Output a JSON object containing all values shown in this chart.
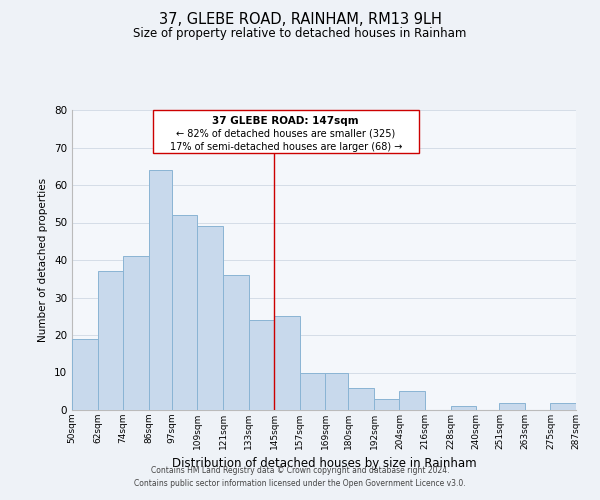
{
  "title": "37, GLEBE ROAD, RAINHAM, RM13 9LH",
  "subtitle": "Size of property relative to detached houses in Rainham",
  "xlabel": "Distribution of detached houses by size in Rainham",
  "ylabel": "Number of detached properties",
  "bar_left_edges": [
    50,
    62,
    74,
    86,
    97,
    109,
    121,
    133,
    145,
    157,
    169,
    180,
    192,
    204,
    216,
    228,
    240,
    251,
    263,
    275
  ],
  "bar_widths": [
    12,
    12,
    12,
    11,
    12,
    12,
    12,
    12,
    12,
    12,
    11,
    12,
    12,
    12,
    12,
    12,
    11,
    12,
    12,
    12
  ],
  "bar_heights": [
    19,
    37,
    41,
    64,
    52,
    49,
    36,
    24,
    25,
    10,
    10,
    6,
    3,
    5,
    0,
    1,
    0,
    2,
    0,
    2
  ],
  "bar_color": "#c8d9ec",
  "bar_edge_color": "#8ab4d4",
  "tick_labels": [
    "50sqm",
    "62sqm",
    "74sqm",
    "86sqm",
    "97sqm",
    "109sqm",
    "121sqm",
    "133sqm",
    "145sqm",
    "157sqm",
    "169sqm",
    "180sqm",
    "192sqm",
    "204sqm",
    "216sqm",
    "228sqm",
    "240sqm",
    "251sqm",
    "263sqm",
    "275sqm",
    "287sqm"
  ],
  "ylim": [
    0,
    80
  ],
  "yticks": [
    0,
    10,
    20,
    30,
    40,
    50,
    60,
    70,
    80
  ],
  "property_line_x": 145,
  "property_line_color": "#cc0000",
  "annotation_title": "37 GLEBE ROAD: 147sqm",
  "annotation_line1": "← 82% of detached houses are smaller (325)",
  "annotation_line2": "17% of semi-detached houses are larger (68) →",
  "footer_line1": "Contains HM Land Registry data © Crown copyright and database right 2024.",
  "footer_line2": "Contains public sector information licensed under the Open Government Licence v3.0.",
  "background_color": "#eef2f7",
  "plot_background_color": "#f4f7fb",
  "grid_color": "#d0d8e4"
}
